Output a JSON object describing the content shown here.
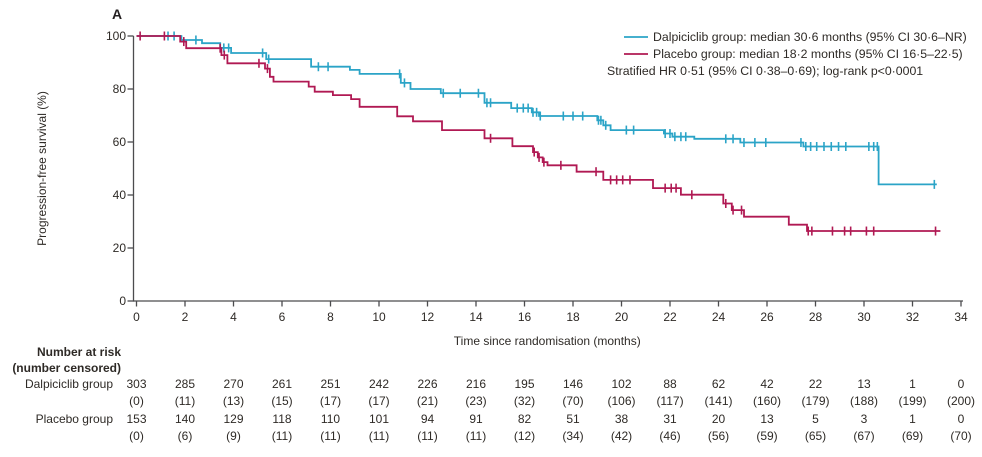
{
  "panel_label": "A",
  "colors": {
    "dalpiciclib": "#2ba4c7",
    "placebo": "#b01953",
    "axis": "#4c4c4e",
    "text": "#2e2a26"
  },
  "legend": {
    "dalpiciclib_label": "Dalpiciclib group: median 30·6 months (95% CI 30·6–NR)",
    "placebo_label": "Placebo group: median 18·2 months (95% CI 16·5–22·5)",
    "stats_line": "Stratified HR 0·51 (95% CI 0·38–0·69); log-rank p<0·0001"
  },
  "chart_data": {
    "type": "line",
    "subtype": "kaplan_meier_step",
    "title": "",
    "xlabel": "Time since randomisation (months)",
    "ylabel": "Progression-free survival (%)",
    "xlim": [
      0,
      34
    ],
    "ylim": [
      0,
      100
    ],
    "xticks": [
      0,
      2,
      4,
      6,
      8,
      10,
      12,
      14,
      16,
      18,
      20,
      22,
      24,
      26,
      28,
      30,
      32,
      34
    ],
    "yticks": [
      0,
      20,
      40,
      60,
      80,
      100
    ],
    "grid": false,
    "legend_position": "top-right",
    "series": [
      {
        "name": "Dalpiciclib group",
        "color": "#2ba4c7",
        "median_months": "30·6",
        "ci": "30·6–NR",
        "end_time": 33.0,
        "steps": [
          [
            0,
            100
          ],
          [
            1.85,
            98.5
          ],
          [
            2.7,
            97.3
          ],
          [
            3.45,
            95.5
          ],
          [
            3.9,
            93.6
          ],
          [
            5.35,
            91.3
          ],
          [
            7.2,
            88.4
          ],
          [
            8.8,
            87.2
          ],
          [
            9.2,
            85.7
          ],
          [
            10.9,
            82.3
          ],
          [
            11.3,
            80.0
          ],
          [
            12.55,
            78.4
          ],
          [
            14.35,
            74.8
          ],
          [
            15.45,
            72.8
          ],
          [
            16.3,
            71.2
          ],
          [
            16.6,
            69.8
          ],
          [
            19.0,
            68.2
          ],
          [
            19.25,
            66.3
          ],
          [
            19.55,
            64.5
          ],
          [
            21.75,
            63.2
          ],
          [
            22.1,
            62.0
          ],
          [
            23.0,
            61.2
          ],
          [
            24.9,
            59.8
          ],
          [
            27.5,
            58.3
          ],
          [
            30.6,
            44.0
          ]
        ],
        "censor_times": [
          1.3,
          1.55,
          2.45,
          3.6,
          3.8,
          5.2,
          5.45,
          7.5,
          7.9,
          10.85,
          11.05,
          12.65,
          13.35,
          14.1,
          14.45,
          14.6,
          15.7,
          15.95,
          16.15,
          16.35,
          16.5,
          16.65,
          17.6,
          18.0,
          18.4,
          19.05,
          19.15,
          19.35,
          20.2,
          20.5,
          21.8,
          22.0,
          22.2,
          22.45,
          22.65,
          24.3,
          24.6,
          25.05,
          25.5,
          25.95,
          27.4,
          27.6,
          27.8,
          28.05,
          28.35,
          28.65,
          28.95,
          29.25,
          30.2,
          30.4,
          30.55,
          32.9
        ]
      },
      {
        "name": "Placebo group",
        "color": "#b01953",
        "median_months": "18·2",
        "ci": "16·5–22·5",
        "end_time": 33.15,
        "steps": [
          [
            0,
            100
          ],
          [
            1.8,
            97.9
          ],
          [
            2.05,
            95.4
          ],
          [
            3.5,
            92.8
          ],
          [
            3.75,
            89.7
          ],
          [
            5.3,
            87.7
          ],
          [
            5.5,
            84.6
          ],
          [
            5.65,
            82.8
          ],
          [
            7.1,
            80.9
          ],
          [
            7.35,
            79.0
          ],
          [
            8.1,
            77.7
          ],
          [
            8.85,
            76.2
          ],
          [
            9.2,
            73.3
          ],
          [
            10.75,
            69.7
          ],
          [
            11.4,
            67.8
          ],
          [
            12.6,
            64.5
          ],
          [
            14.35,
            61.4
          ],
          [
            15.5,
            58.4
          ],
          [
            16.35,
            56.2
          ],
          [
            16.55,
            54.2
          ],
          [
            16.75,
            52.4
          ],
          [
            16.95,
            51.2
          ],
          [
            18.15,
            48.8
          ],
          [
            19.25,
            45.7
          ],
          [
            21.3,
            42.6
          ],
          [
            22.45,
            40.1
          ],
          [
            24.2,
            36.8
          ],
          [
            24.55,
            34.3
          ],
          [
            25.05,
            31.8
          ],
          [
            26.9,
            28.8
          ],
          [
            27.65,
            26.4
          ]
        ],
        "censor_times": [
          0.15,
          1.15,
          1.95,
          3.45,
          3.62,
          5.05,
          5.4,
          14.6,
          16.4,
          16.6,
          16.8,
          17.5,
          18.95,
          19.55,
          19.8,
          20.05,
          20.35,
          21.8,
          22.05,
          22.25,
          22.9,
          24.3,
          24.6,
          24.95,
          27.7,
          27.85,
          28.7,
          29.2,
          29.45,
          30.1,
          30.4,
          32.95
        ]
      }
    ]
  },
  "risk_table": {
    "header_line1": "Number at risk",
    "header_line2": "(number censored)",
    "rows": [
      {
        "label": "Dalpiciclib group",
        "at_risk": [
          303,
          285,
          270,
          261,
          251,
          242,
          226,
          216,
          195,
          146,
          102,
          88,
          62,
          42,
          22,
          13,
          1,
          0
        ],
        "censored": [
          0,
          11,
          13,
          15,
          17,
          17,
          21,
          23,
          32,
          70,
          106,
          117,
          141,
          160,
          179,
          188,
          199,
          200
        ]
      },
      {
        "label": "Placebo group",
        "at_risk": [
          153,
          140,
          129,
          118,
          110,
          101,
          94,
          91,
          82,
          51,
          38,
          31,
          20,
          13,
          5,
          3,
          1,
          0
        ],
        "censored": [
          0,
          6,
          9,
          11,
          11,
          11,
          11,
          11,
          12,
          34,
          42,
          46,
          56,
          59,
          65,
          67,
          69,
          70
        ]
      }
    ]
  }
}
